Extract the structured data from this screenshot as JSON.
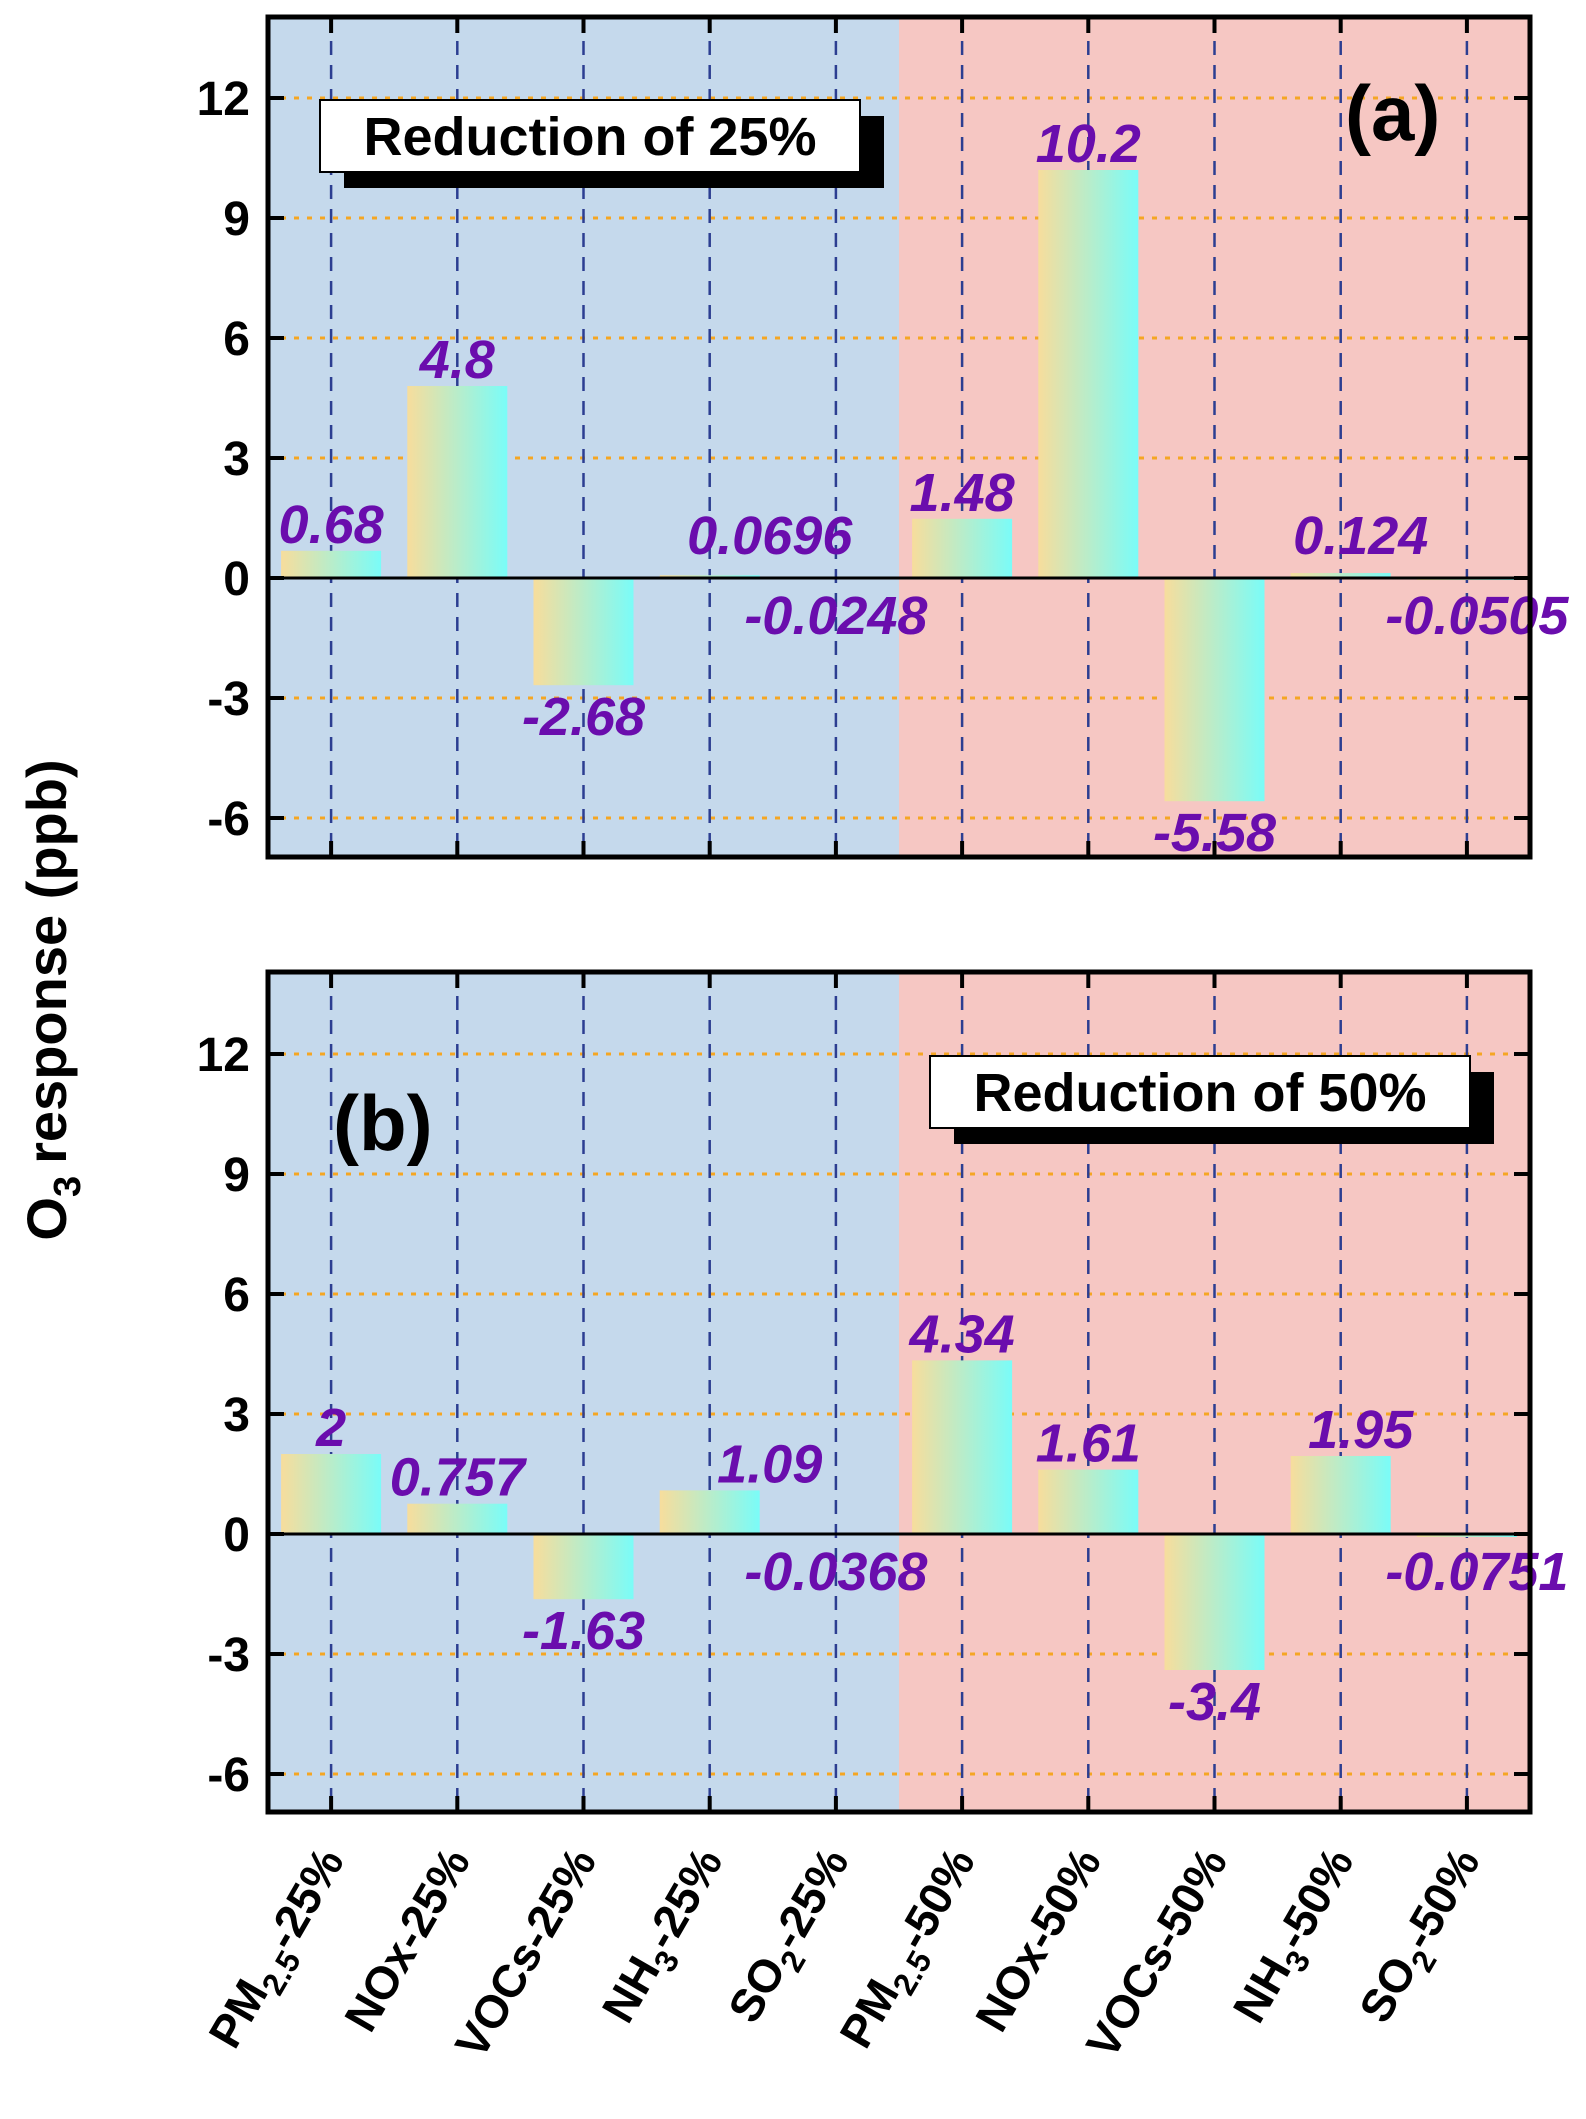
{
  "figure": {
    "y_axis_label": "response (ppb)",
    "y_axis_label_prefix": "O",
    "y_axis_label_subscript": "3"
  },
  "colors": {
    "left_band": "#c5d9ec",
    "right_band": "#f6c7c3",
    "bar_gradient_start": "#f7dd9c",
    "bar_gradient_end": "#7afcf8",
    "data_label": "#6a0dad",
    "hgrid": "#f5a623",
    "vgrid": "#2c3e91"
  },
  "x_categories": [
    {
      "main": "PM",
      "sub": "2.5",
      "tail": "-25%"
    },
    {
      "main": "NOx-25%",
      "sub": "",
      "tail": ""
    },
    {
      "main": "VOCs-25%",
      "sub": "",
      "tail": ""
    },
    {
      "main": "NH",
      "sub": "3",
      "tail": "-25%"
    },
    {
      "main": "SO",
      "sub": "2",
      "tail": "-25%"
    },
    {
      "main": "PM",
      "sub": "2.5",
      "tail": "-50%"
    },
    {
      "main": "NOx-50%",
      "sub": "",
      "tail": ""
    },
    {
      "main": "VOCs-50%",
      "sub": "",
      "tail": ""
    },
    {
      "main": "NH",
      "sub": "3",
      "tail": "-50%"
    },
    {
      "main": "SO",
      "sub": "2",
      "tail": "-50%"
    }
  ],
  "chart_data": [
    {
      "type": "bar",
      "panel": "(a)",
      "box_label": "Reduction of 25%",
      "categories": [
        "PM2.5-25%",
        "NOx-25%",
        "VOCs-25%",
        "NH3-25%",
        "SO2-25%",
        "PM2.5-50%",
        "NOx-50%",
        "VOCs-50%",
        "NH3-50%",
        "SO2-50%"
      ],
      "values": [
        0.68,
        4.8,
        -2.68,
        0.0696,
        -0.0248,
        1.48,
        10.2,
        -5.58,
        0.124,
        -0.0505
      ],
      "labels": [
        "0.68",
        "4.8",
        "-2.68",
        "0.0696",
        "-0.0248",
        "1.48",
        "10.2",
        "-5.58",
        "0.124",
        "-0.0505"
      ],
      "yticks": [
        "12",
        "9",
        "6",
        "3",
        "0",
        "-3",
        "-6"
      ],
      "ylim": [
        -7,
        14
      ],
      "grid": true
    },
    {
      "type": "bar",
      "panel": "(b)",
      "box_label": "Reduction of 50%",
      "categories": [
        "PM2.5-25%",
        "NOx-25%",
        "VOCs-25%",
        "NH3-25%",
        "SO2-25%",
        "PM2.5-50%",
        "NOx-50%",
        "VOCs-50%",
        "NH3-50%",
        "SO2-50%"
      ],
      "values": [
        2,
        0.757,
        -1.63,
        1.09,
        -0.0368,
        4.34,
        1.61,
        -3.4,
        1.95,
        -0.0751
      ],
      "labels": [
        "2",
        "0.757",
        "-1.63",
        "1.09",
        "-0.0368",
        "4.34",
        "1.61",
        "-3.4",
        "1.95",
        "-0.0751"
      ],
      "yticks": [
        "12",
        "9",
        "6",
        "3",
        "0",
        "-3",
        "-6"
      ],
      "ylim": [
        -7,
        14
      ],
      "grid": true
    }
  ]
}
